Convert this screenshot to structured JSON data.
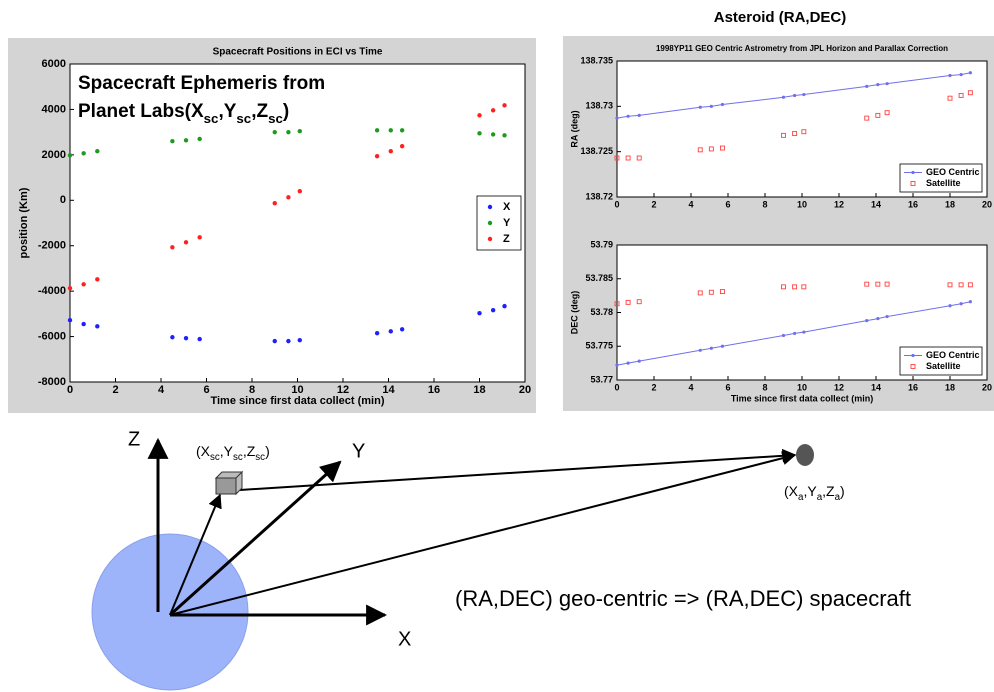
{
  "chart_data": [
    {
      "type": "scatter",
      "title": "Spacecraft Positions in ECI vs Time",
      "xlabel": "Time since first data collect (min)",
      "ylabel": "position (Km)",
      "annotation": {
        "line1": "Spacecraft Ephemeris from",
        "line2": [
          {
            "text": "Planet Labs(X",
            "sub": false
          },
          {
            "text": "sc",
            "sub": true
          },
          {
            "text": ",Y",
            "sub": false
          },
          {
            "text": "sc",
            "sub": true
          },
          {
            "text": ",Z",
            "sub": false
          },
          {
            "text": "sc",
            "sub": true
          },
          {
            "text": ")",
            "sub": false
          }
        ]
      },
      "x": [
        0,
        0.6,
        1.2,
        4.5,
        5.1,
        5.7,
        9.0,
        9.6,
        10.1,
        13.5,
        14.1,
        14.6,
        18.0,
        18.6,
        19.1
      ],
      "series": [
        {
          "name": "X",
          "color": "#1f1fff",
          "marker": "dot",
          "line": false,
          "values": [
            -5280,
            -5450,
            -5550,
            -6030,
            -6070,
            -6110,
            -6200,
            -6200,
            -6160,
            -5850,
            -5770,
            -5680,
            -4970,
            -4840,
            -4660
          ]
        },
        {
          "name": "Y",
          "color": "#1f9a1f",
          "marker": "dot",
          "line": false,
          "values": [
            1980,
            2070,
            2160,
            2600,
            2640,
            2700,
            3000,
            3000,
            3040,
            3080,
            3080,
            3080,
            2950,
            2900,
            2860
          ]
        },
        {
          "name": "Z",
          "color": "#ff2020",
          "marker": "dot",
          "line": false,
          "values": [
            -3870,
            -3700,
            -3480,
            -2070,
            -1850,
            -1630,
            -130,
            130,
            400,
            1940,
            2160,
            2380,
            3740,
            3960,
            4180
          ]
        }
      ],
      "xlim": [
        0,
        20
      ],
      "xticks": [
        0,
        2,
        4,
        6,
        8,
        10,
        12,
        14,
        16,
        18,
        20
      ],
      "ylim": [
        -8000,
        6000
      ],
      "yticks": [
        -8000,
        -6000,
        -4000,
        -2000,
        0,
        2000,
        4000,
        6000
      ],
      "legend": "east"
    },
    {
      "type": "line",
      "heading": "Asteroid (RA,DEC)",
      "title": "1998YP11 GEO Centric Astrometry from JPL Horizon and Parallax Correction",
      "ylabel": "RA (deg)",
      "x": [
        0,
        0.6,
        1.2,
        4.5,
        5.1,
        5.7,
        9.0,
        9.6,
        10.1,
        13.5,
        14.1,
        14.6,
        18.0,
        18.6,
        19.1
      ],
      "series": [
        {
          "name": "GEO Centric",
          "color": "#7070ee",
          "marker": "point",
          "line": true,
          "values": [
            138.7287,
            138.7289,
            138.729,
            138.7299,
            138.73,
            138.7302,
            138.731,
            138.7312,
            138.7313,
            138.7322,
            138.7324,
            138.7325,
            138.7334,
            138.7335,
            138.7337
          ]
        },
        {
          "name": "Satellite",
          "color": "#ff4040",
          "marker": "open-square",
          "line": false,
          "values": [
            138.7243,
            138.7243,
            138.7243,
            138.7252,
            138.7253,
            138.7254,
            138.7268,
            138.727,
            138.7272,
            138.7287,
            138.729,
            138.7293,
            138.7309,
            138.7312,
            138.7315
          ]
        }
      ],
      "xlim": [
        0,
        20
      ],
      "xticks": [
        0,
        2,
        4,
        6,
        8,
        10,
        12,
        14,
        16,
        18,
        20
      ],
      "ylim": [
        138.72,
        138.735
      ],
      "yticks": [
        138.72,
        138.725,
        138.73,
        138.735
      ],
      "legend": "lower right"
    },
    {
      "type": "line",
      "xlabel": "Time since first data collect (min)",
      "ylabel": "DEC (deg)",
      "x": [
        0,
        0.6,
        1.2,
        4.5,
        5.1,
        5.7,
        9.0,
        9.6,
        10.1,
        13.5,
        14.1,
        14.6,
        18.0,
        18.6,
        19.1
      ],
      "series": [
        {
          "name": "GEO Centric",
          "color": "#7070ee",
          "marker": "point",
          "line": true,
          "values": [
            53.7722,
            53.7725,
            53.7728,
            53.7744,
            53.7747,
            53.775,
            53.7766,
            53.7769,
            53.7771,
            53.7788,
            53.7791,
            53.7794,
            53.781,
            53.7813,
            53.7816
          ]
        },
        {
          "name": "Satellite",
          "color": "#ff4040",
          "marker": "open-square",
          "line": false,
          "values": [
            53.7813,
            53.7815,
            53.7816,
            53.7829,
            53.783,
            53.7831,
            53.7838,
            53.7838,
            53.7838,
            53.7842,
            53.7842,
            53.7842,
            53.7841,
            53.7841,
            53.7841
          ]
        }
      ],
      "xlim": [
        0,
        20
      ],
      "xticks": [
        0,
        2,
        4,
        6,
        8,
        10,
        12,
        14,
        16,
        18,
        20
      ],
      "ylim": [
        53.77,
        53.79
      ],
      "yticks": [
        53.77,
        53.775,
        53.78,
        53.785,
        53.79
      ],
      "legend": "lower right"
    }
  ],
  "diagram": {
    "z_label": "Z",
    "y_label": "Y",
    "x_label": "X",
    "spacecraft_label": [
      {
        "text": "(X",
        "sub": false
      },
      {
        "text": "sc",
        "sub": true
      },
      {
        "text": ",Y",
        "sub": false
      },
      {
        "text": "sc",
        "sub": true
      },
      {
        "text": ",Z",
        "sub": false
      },
      {
        "text": "sc",
        "sub": true
      },
      {
        "text": ")",
        "sub": false
      }
    ],
    "asteroid_label": [
      {
        "text": "(X",
        "sub": false
      },
      {
        "text": "a",
        "sub": true
      },
      {
        "text": ",Y",
        "sub": false
      },
      {
        "text": "a",
        "sub": true
      },
      {
        "text": ",Z",
        "sub": false
      },
      {
        "text": "a",
        "sub": true
      },
      {
        "text": ")",
        "sub": false
      }
    ],
    "caption": "(RA,DEC) geo-centric => (RA,DEC) spacecraft"
  }
}
